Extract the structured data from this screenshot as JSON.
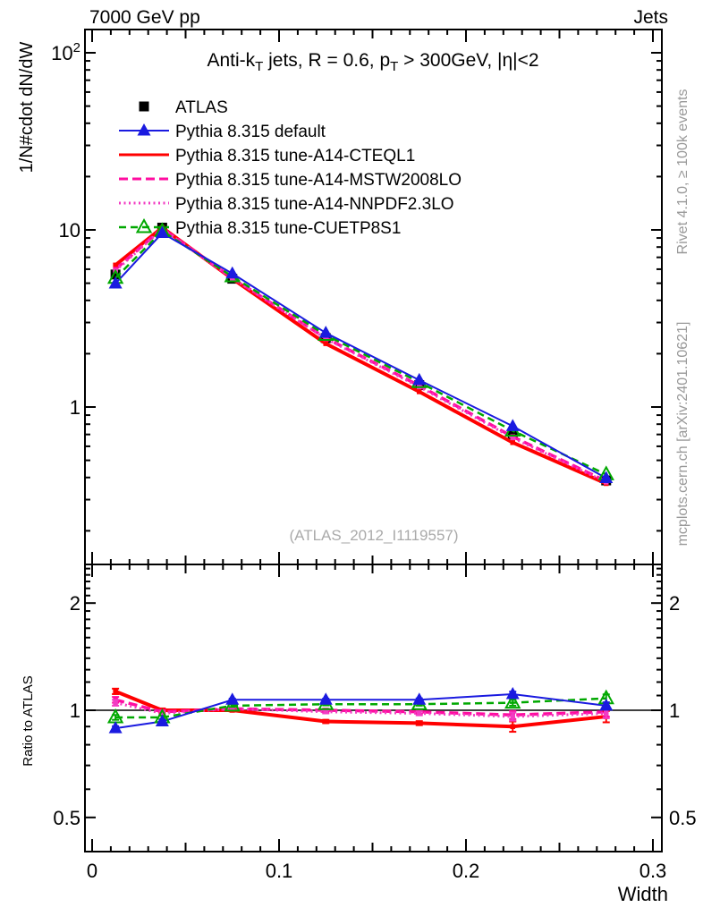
{
  "header": {
    "left": "7000 GeV pp",
    "right": "Jets"
  },
  "title": {
    "p1": "Anti-k",
    "s1": "T",
    "p2": " jets, R = 0.6, p",
    "s2": "T",
    "p3": " > 300GeV, |η|<2"
  },
  "labels": {
    "y_main": "1/N#cdot dN/dW",
    "y_ratio": "Ratio to ATLAS",
    "x": "Width",
    "watermark": "(ATLAS_2012_I1119557)",
    "rivet": "Rivet 4.1.0, ≥ 100k events",
    "mcplots": "mcplots.cern.ch [arXiv:2401.10621]"
  },
  "chart_data": {
    "type": "line",
    "xlabel": "Width",
    "ylabel_main": "1/N#cdot dN/dW",
    "ylabel_ratio": "Ratio to ATLAS",
    "x": [
      0.0125,
      0.0375,
      0.075,
      0.125,
      0.175,
      0.225,
      0.275
    ],
    "xlim": [
      0,
      0.3
    ],
    "main_ylog": true,
    "main_ylim": [
      0.13,
      135
    ],
    "ratio_ylog": true,
    "ratio_ylim": [
      0.4,
      2.57
    ],
    "xticks": [
      {
        "v": 0,
        "label": "0"
      },
      {
        "v": 0.1,
        "label": "0.1"
      },
      {
        "v": 0.2,
        "label": "0.2"
      },
      {
        "v": 0.3,
        "label": "0.3"
      }
    ],
    "main_yticks": [
      {
        "v": 100,
        "base": "10",
        "sup": "2"
      },
      {
        "v": 10,
        "base": "10"
      },
      {
        "v": 1,
        "base": "1"
      }
    ],
    "ratio_yticks": [
      {
        "v": 2,
        "base": "2"
      },
      {
        "v": 1,
        "base": "1"
      },
      {
        "v": 0.5,
        "base": "0.5"
      }
    ],
    "series": [
      {
        "name": "ATLAS",
        "color": "#000000",
        "line": "none",
        "width": 0,
        "marker": "square-filled",
        "values": [
          5.6,
          10.3,
          5.3,
          2.45,
          1.33,
          0.7,
          0.385
        ],
        "ratio": null,
        "rerr": null
      },
      {
        "name": "Pythia 8.315 default",
        "color": "#1a1ae0",
        "line": "solid",
        "width": 2,
        "marker": "triangle-filled",
        "values": [
          4.98,
          9.6,
          5.67,
          2.62,
          1.42,
          0.78,
          0.397
        ],
        "ratio": [
          0.89,
          0.93,
          1.07,
          1.07,
          1.07,
          1.11,
          1.03
        ],
        "rerr": [
          0.012,
          0.008,
          0.008,
          0.008,
          0.01,
          0.018,
          0.022
        ]
      },
      {
        "name": "Pythia 8.315 tune-A14-CTEQL1",
        "color": "#ff0000",
        "line": "solid",
        "width": 4,
        "marker": "square-small",
        "values": [
          6.33,
          10.3,
          5.3,
          2.28,
          1.22,
          0.63,
          0.37
        ],
        "ratio": [
          1.13,
          1.0,
          1.0,
          0.93,
          0.92,
          0.9,
          0.96
        ],
        "rerr": [
          0.02,
          0.012,
          0.008,
          0.01,
          0.012,
          0.03,
          0.035
        ]
      },
      {
        "name": "Pythia 8.315 tune-A14-MSTW2008LO",
        "color": "#ff0da0",
        "line": "dash",
        "width": 3.5,
        "marker": "square-small",
        "values": [
          5.99,
          10.2,
          5.35,
          2.45,
          1.32,
          0.68,
          0.381
        ],
        "ratio": [
          1.07,
          0.99,
          1.01,
          1.0,
          0.99,
          0.97,
          0.99
        ],
        "rerr": [
          0.02,
          0.012,
          0.008,
          0.01,
          0.012,
          0.025,
          0.03
        ]
      },
      {
        "name": "Pythia 8.315 tune-A14-NNPDF2.3LO",
        "color": "#f23cc3",
        "line": "dot",
        "width": 3,
        "marker": "square-small",
        "values": [
          5.88,
          10.1,
          5.35,
          2.43,
          1.3,
          0.67,
          0.377
        ],
        "ratio": [
          1.05,
          0.98,
          1.01,
          0.99,
          0.98,
          0.96,
          0.98
        ],
        "rerr": [
          0.02,
          0.012,
          0.008,
          0.01,
          0.012,
          0.025,
          0.03
        ]
      },
      {
        "name": "Pythia 8.315 tune-CUETP8S1",
        "color": "#00a800",
        "line": "dash2",
        "width": 2.5,
        "marker": "triangle-open",
        "values": [
          5.35,
          9.84,
          5.46,
          2.55,
          1.38,
          0.735,
          0.416
        ],
        "ratio": [
          0.955,
          0.955,
          1.03,
          1.04,
          1.04,
          1.05,
          1.08
        ],
        "rerr": [
          0.015,
          0.01,
          0.008,
          0.008,
          0.01,
          0.02,
          0.028
        ]
      }
    ]
  }
}
